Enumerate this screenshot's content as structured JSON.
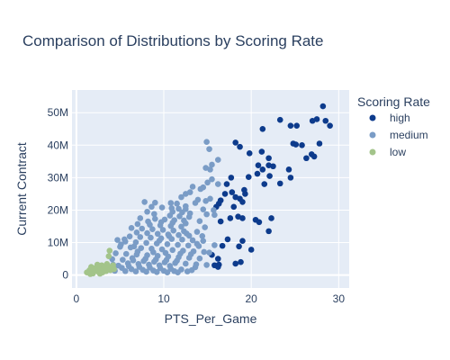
{
  "chart_data": {
    "type": "scatter",
    "title": "Comparison of Distributions by Scoring Rate",
    "xlabel": "PTS_Per_Game",
    "ylabel": "Current Contract",
    "xlim": [
      -0.5,
      31.2
    ],
    "ylim": [
      -4,
      57
    ],
    "x_ticks": [
      0,
      10,
      20,
      30
    ],
    "x_tick_labels": [
      "0",
      "10",
      "20",
      "30"
    ],
    "y_ticks": [
      0,
      10,
      20,
      30,
      40,
      50
    ],
    "y_tick_labels": [
      "0",
      "10M",
      "20M",
      "30M",
      "40M",
      "50M"
    ],
    "y_unit": "millions",
    "grid": true,
    "legend": {
      "title": "Scoring Rate",
      "position": "right"
    },
    "series": [
      {
        "name": "high",
        "color": "#0d3b8c",
        "points": [
          [
            28.2,
            52
          ],
          [
            27.0,
            47.5
          ],
          [
            28.5,
            47.5
          ],
          [
            29.0,
            46
          ],
          [
            27.5,
            48
          ],
          [
            23.3,
            47.8
          ],
          [
            24.5,
            46
          ],
          [
            25.2,
            46
          ],
          [
            21.3,
            45
          ],
          [
            24.8,
            40.5
          ],
          [
            25.1,
            40.2
          ],
          [
            25.8,
            40
          ],
          [
            27.8,
            40.5
          ],
          [
            18.2,
            40.8
          ],
          [
            18.7,
            39.5
          ],
          [
            19.8,
            37.5
          ],
          [
            21.2,
            38
          ],
          [
            22.0,
            36
          ],
          [
            26.9,
            37.2
          ],
          [
            26.3,
            36
          ],
          [
            27.2,
            36.5
          ],
          [
            20.8,
            33.8
          ],
          [
            22.0,
            33.8
          ],
          [
            22.5,
            33.5
          ],
          [
            24.3,
            32.5
          ],
          [
            21.3,
            32.5
          ],
          [
            20.7,
            31.2
          ],
          [
            22.1,
            30.5
          ],
          [
            24.5,
            30
          ],
          [
            19.7,
            30.2
          ],
          [
            17.7,
            30
          ],
          [
            17.2,
            28
          ],
          [
            21.5,
            28
          ],
          [
            23.3,
            28.2
          ],
          [
            19.2,
            26.2
          ],
          [
            17.8,
            25.5
          ],
          [
            17.0,
            25
          ],
          [
            19.3,
            25
          ],
          [
            18.2,
            24
          ],
          [
            16.5,
            23
          ],
          [
            18.7,
            23.5
          ],
          [
            16.3,
            22
          ],
          [
            19.0,
            22.5
          ],
          [
            16.0,
            21
          ],
          [
            18.0,
            21
          ],
          [
            18.5,
            18
          ],
          [
            17.6,
            17.5
          ],
          [
            19.0,
            17.5
          ],
          [
            20.5,
            17
          ],
          [
            16.5,
            16.5
          ],
          [
            20.9,
            16.3
          ],
          [
            22.3,
            17.5
          ],
          [
            22.0,
            13.5
          ],
          [
            17.3,
            11
          ],
          [
            19.0,
            10.5
          ],
          [
            16.7,
            9
          ],
          [
            18.6,
            8.8
          ],
          [
            20.0,
            7.8
          ],
          [
            15.5,
            6.2
          ],
          [
            16.2,
            5
          ],
          [
            18.8,
            4
          ],
          [
            16.3,
            3.2
          ],
          [
            15.8,
            3
          ],
          [
            16.2,
            2.5
          ],
          [
            18.2,
            3.5
          ]
        ]
      },
      {
        "name": "medium",
        "color": "#7a9cc6",
        "points": [
          [
            14.9,
            41
          ],
          [
            15.2,
            38.8
          ],
          [
            16.2,
            35.5
          ],
          [
            15.5,
            34
          ],
          [
            14.8,
            33
          ],
          [
            15.3,
            32.5
          ],
          [
            15.5,
            29.5
          ],
          [
            15.0,
            28.5
          ],
          [
            16.2,
            28
          ],
          [
            14.5,
            27
          ],
          [
            14.2,
            26.5
          ],
          [
            13.3,
            27.2
          ],
          [
            12.5,
            25
          ],
          [
            13.0,
            25.5
          ],
          [
            12.0,
            24
          ],
          [
            15.3,
            23.5
          ],
          [
            14.8,
            22.8
          ],
          [
            13.6,
            22.2
          ],
          [
            13.9,
            23.2
          ],
          [
            7.8,
            22.5
          ],
          [
            9.0,
            22.3
          ],
          [
            10.8,
            22.2
          ],
          [
            11.5,
            22
          ],
          [
            12.5,
            21.2
          ],
          [
            8.6,
            21
          ],
          [
            9.8,
            20.8
          ],
          [
            10.9,
            20.6
          ],
          [
            11.7,
            20.4
          ],
          [
            12.5,
            20.3
          ],
          [
            14.5,
            20.2
          ],
          [
            15.7,
            20
          ],
          [
            8.1,
            19.5
          ],
          [
            11.0,
            19.5
          ],
          [
            12.1,
            19.3
          ],
          [
            13.0,
            19
          ],
          [
            14.9,
            18.7
          ],
          [
            15.8,
            18.5
          ],
          [
            10.7,
            18.3
          ],
          [
            11.8,
            18.1
          ],
          [
            12.9,
            17.9
          ],
          [
            7.3,
            17.5
          ],
          [
            9.0,
            17.3
          ],
          [
            10.1,
            17.1
          ],
          [
            11.2,
            16.9
          ],
          [
            12.3,
            16.8
          ],
          [
            14.1,
            16.6
          ],
          [
            8.2,
            16.5
          ],
          [
            9.7,
            16.3
          ],
          [
            11.0,
            16.1
          ],
          [
            12.5,
            15.9
          ],
          [
            7.0,
            15.7
          ],
          [
            8.4,
            15.5
          ],
          [
            9.6,
            15.3
          ],
          [
            10.8,
            15.1
          ],
          [
            12.0,
            14.9
          ],
          [
            14.7,
            14.7
          ],
          [
            6.3,
            14.5
          ],
          [
            7.5,
            14.3
          ],
          [
            8.7,
            14.1
          ],
          [
            9.9,
            13.9
          ],
          [
            11.1,
            13.7
          ],
          [
            12.3,
            13.5
          ],
          [
            13.8,
            13.3
          ],
          [
            6.9,
            13.1
          ],
          [
            8.1,
            12.9
          ],
          [
            9.3,
            12.7
          ],
          [
            10.5,
            12.5
          ],
          [
            11.7,
            12.3
          ],
          [
            12.9,
            12.1
          ],
          [
            6.1,
            11.9
          ],
          [
            7.3,
            11.7
          ],
          [
            8.5,
            11.5
          ],
          [
            9.7,
            11.3
          ],
          [
            10.9,
            11.1
          ],
          [
            12.1,
            10.9
          ],
          [
            13.3,
            10.7
          ],
          [
            14.5,
            10.5
          ],
          [
            5.6,
            10.3
          ],
          [
            6.8,
            10.1
          ],
          [
            8.0,
            9.9
          ],
          [
            9.2,
            9.7
          ],
          [
            10.4,
            9.5
          ],
          [
            11.6,
            9.3
          ],
          [
            12.8,
            9.1
          ],
          [
            14.0,
            8.9
          ],
          [
            15.8,
            9.2
          ],
          [
            5.0,
            8.7
          ],
          [
            6.2,
            8.5
          ],
          [
            7.4,
            8.3
          ],
          [
            8.6,
            8.1
          ],
          [
            9.8,
            7.9
          ],
          [
            11.0,
            7.7
          ],
          [
            12.2,
            7.5
          ],
          [
            13.4,
            7.3
          ],
          [
            14.6,
            7.1
          ],
          [
            15.2,
            6.9
          ],
          [
            4.5,
            6.7
          ],
          [
            5.7,
            6.5
          ],
          [
            6.9,
            6.3
          ],
          [
            8.1,
            6.1
          ],
          [
            9.3,
            5.9
          ],
          [
            10.5,
            5.7
          ],
          [
            11.7,
            5.5
          ],
          [
            12.9,
            5.3
          ],
          [
            14.1,
            5.1
          ],
          [
            4.1,
            4.9
          ],
          [
            5.3,
            4.7
          ],
          [
            6.5,
            4.5
          ],
          [
            7.7,
            4.3
          ],
          [
            8.9,
            4.1
          ],
          [
            10.1,
            3.9
          ],
          [
            11.3,
            3.7
          ],
          [
            12.5,
            3.5
          ],
          [
            13.7,
            3.3
          ],
          [
            14.9,
            3.1
          ],
          [
            4.8,
            2.9
          ],
          [
            6.0,
            2.7
          ],
          [
            7.2,
            2.5
          ],
          [
            8.4,
            2.3
          ],
          [
            9.6,
            2.1
          ],
          [
            10.8,
            1.9
          ],
          [
            12.0,
            1.7
          ],
          [
            13.2,
            1.5
          ],
          [
            4.4,
            1.3
          ],
          [
            5.6,
            1.2
          ],
          [
            6.8,
            1.1
          ],
          [
            8.0,
            1.0
          ],
          [
            9.2,
            0.9
          ],
          [
            10.4,
            0.8
          ],
          [
            11.6,
            0.8
          ],
          [
            3.8,
            2.0
          ],
          [
            4.2,
            3.2
          ],
          [
            5.2,
            2.2
          ],
          [
            6.3,
            1.8
          ],
          [
            7.6,
            1.6
          ],
          [
            8.8,
            1.4
          ],
          [
            10.0,
            1.3
          ],
          [
            11.2,
            1.2
          ],
          [
            12.7,
            1.1
          ],
          [
            13.6,
            2.4
          ],
          [
            5.9,
            3.6
          ],
          [
            7.1,
            3.4
          ],
          [
            8.3,
            3.2
          ],
          [
            9.5,
            3.0
          ],
          [
            10.7,
            2.8
          ],
          [
            6.4,
            5.2
          ],
          [
            7.9,
            5.0
          ],
          [
            9.1,
            4.8
          ],
          [
            10.3,
            4.6
          ],
          [
            11.5,
            4.4
          ],
          [
            5.1,
            9.4
          ],
          [
            7.0,
            7.2
          ],
          [
            8.8,
            7.0
          ],
          [
            10.2,
            6.8
          ],
          [
            11.9,
            6.6
          ],
          [
            13.1,
            6.4
          ],
          [
            6.6,
            8.8
          ],
          [
            9.5,
            10.6
          ],
          [
            10.6,
            12.0
          ],
          [
            12.6,
            12.8
          ],
          [
            4.7,
            10.8
          ],
          [
            5.5,
            11.0
          ],
          [
            13.8,
            9.6
          ],
          [
            14.4,
            12.0
          ],
          [
            8.9,
            18.8
          ]
        ]
      },
      {
        "name": "low",
        "color": "#a3c48a",
        "points": [
          [
            1.2,
            0.8
          ],
          [
            1.5,
            1.5
          ],
          [
            1.7,
            2.5
          ],
          [
            1.9,
            0.5
          ],
          [
            2.0,
            1.8
          ],
          [
            2.2,
            2.2
          ],
          [
            2.4,
            3.2
          ],
          [
            2.5,
            1.0
          ],
          [
            2.6,
            2.8
          ],
          [
            2.8,
            1.5
          ],
          [
            2.9,
            3.0
          ],
          [
            3.0,
            0.8
          ],
          [
            3.1,
            2.0
          ],
          [
            3.2,
            2.6
          ],
          [
            3.4,
            1.2
          ],
          [
            3.5,
            3.4
          ],
          [
            3.6,
            2.0
          ],
          [
            3.7,
            5.8
          ],
          [
            3.8,
            7.5
          ],
          [
            3.9,
            1.5
          ],
          [
            4.0,
            2.5
          ],
          [
            4.2,
            3.0
          ],
          [
            4.3,
            1.8
          ],
          [
            1.6,
            0.3
          ],
          [
            2.7,
            0.4
          ]
        ]
      }
    ]
  }
}
